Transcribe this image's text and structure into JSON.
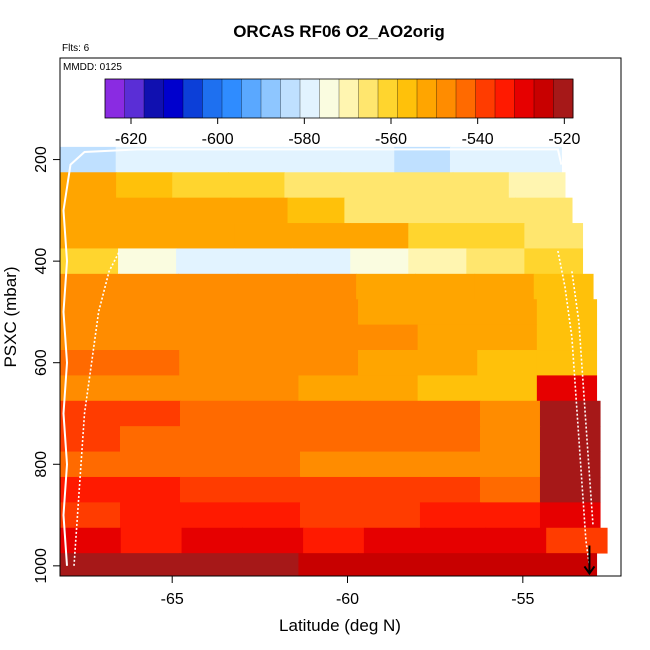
{
  "chart_data": {
    "type": "heatmap",
    "title": "ORCAS RF06 O2_AO2orig",
    "flts_note": "Flts: 6",
    "mmdd_note": "MMDD: 0125",
    "xlabel": "Latitude (deg N)",
    "ylabel": "PSXC (mbar)",
    "xlim": [
      -68.2,
      -52.2
    ],
    "ylim": [
      1020,
      0
    ],
    "xticks": [
      -65,
      -60,
      -55
    ],
    "xtick_labels": [
      "-65",
      "-60",
      "-55"
    ],
    "yticks": [
      200,
      400,
      600,
      800,
      1000
    ],
    "ytick_labels": [
      "200",
      "400",
      "600",
      "800",
      "1000"
    ],
    "colorbar": {
      "range": [
        -626,
        -518
      ],
      "ticks": [
        -620,
        -600,
        -580,
        -560,
        -540,
        -520
      ],
      "tick_labels": [
        "-620",
        "-600",
        "-580",
        "-560",
        "-540",
        "-520"
      ],
      "colors": [
        "#8a2be2",
        "#5a2ed6",
        "#1010b0",
        "#0000cd",
        "#0c3fd8",
        "#1e70f0",
        "#2f8cff",
        "#5aa8ff",
        "#8ec6ff",
        "#bfe0ff",
        "#e2f3ff",
        "#fafce0",
        "#fff5b0",
        "#ffe66e",
        "#ffd52e",
        "#ffc10a",
        "#ffa500",
        "#ff8c00",
        "#ff6a00",
        "#ff3c00",
        "#ff1a00",
        "#e60000",
        "#c80000",
        "#a61818"
      ]
    },
    "layers": [
      {
        "p_top": 175,
        "p_bot": 225,
        "lat_max": -53.9,
        "values": [
          -582,
          -580,
          -579,
          -578,
          -578,
          -580,
          -584,
          -580,
          -578
        ]
      },
      {
        "p_top": 225,
        "p_bot": 275,
        "lat_max": -53.8,
        "values": [
          -550,
          -556,
          -560,
          -562,
          -564,
          -565,
          -566,
          -567,
          -568
        ]
      },
      {
        "p_top": 275,
        "p_bot": 325,
        "lat_max": -53.6,
        "values": [
          -552,
          -552,
          -553,
          -554,
          -555,
          -566,
          -565,
          -566,
          -567
        ]
      },
      {
        "p_top": 325,
        "p_bot": 375,
        "lat_max": -53.3,
        "values": [
          -552,
          -551,
          -551,
          -551,
          -550,
          -552,
          -560,
          -563,
          -564
        ]
      },
      {
        "p_top": 375,
        "p_bot": 425,
        "lat_max": -53.3,
        "values": [
          -560,
          -575,
          -578,
          -578,
          -577,
          -573,
          -569,
          -566,
          -560
        ]
      },
      {
        "p_top": 425,
        "p_bot": 475,
        "lat_max": -53.0,
        "values": [
          -549,
          -549,
          -548,
          -548,
          -549,
          -550,
          -551,
          -553,
          -555
        ]
      },
      {
        "p_top": 475,
        "p_bot": 525,
        "lat_max": -52.9,
        "values": [
          -548,
          -547,
          -547,
          -548,
          -549,
          -550,
          -552,
          -554,
          -557
        ]
      },
      {
        "p_top": 525,
        "p_bot": 575,
        "lat_max": -52.9,
        "values": [
          -547,
          -546,
          -546,
          -547,
          -548,
          -549,
          -551,
          -553,
          -556
        ]
      },
      {
        "p_top": 575,
        "p_bot": 625,
        "lat_max": -52.9,
        "values": [
          -545,
          -545,
          -546,
          -547,
          -549,
          -552,
          -554,
          -556,
          -558
        ]
      },
      {
        "p_top": 625,
        "p_bot": 675,
        "lat_max": -52.9,
        "values": [
          -546,
          -547,
          -548,
          -549,
          -551,
          -553,
          -555,
          -557,
          -528
        ]
      },
      {
        "p_top": 675,
        "p_bot": 725,
        "lat_max": -52.8,
        "values": [
          -538,
          -540,
          -542,
          -543,
          -544,
          -545,
          -545,
          -546,
          -522
        ]
      },
      {
        "p_top": 725,
        "p_bot": 775,
        "lat_max": -52.8,
        "values": [
          -540,
          -541,
          -542,
          -542,
          -543,
          -544,
          -545,
          -546,
          -522
        ]
      },
      {
        "p_top": 775,
        "p_bot": 825,
        "lat_max": -52.8,
        "values": [
          -543,
          -544,
          -545,
          -545,
          -546,
          -546,
          -547,
          -548,
          -522
        ]
      },
      {
        "p_top": 825,
        "p_bot": 875,
        "lat_max": -52.8,
        "values": [
          -535,
          -536,
          -537,
          -538,
          -539,
          -540,
          -540,
          -541,
          -522
        ]
      },
      {
        "p_top": 875,
        "p_bot": 925,
        "lat_max": -52.8,
        "values": [
          -540,
          -536,
          -536,
          -536,
          -538,
          -537,
          -534,
          -533,
          -530
        ]
      },
      {
        "p_top": 925,
        "p_bot": 975,
        "lat_max": -52.6,
        "values": [
          -529,
          -532,
          -531,
          -531,
          -532,
          -531,
          -530,
          -530,
          -540
        ]
      },
      {
        "p_top": 975,
        "p_bot": 1020,
        "lat_max": -52.9,
        "values": [
          -520,
          -521,
          -522,
          -522,
          -523,
          -523,
          -524,
          -525,
          -526
        ]
      }
    ],
    "flight_tracks": [
      [
        [
          -68.0,
          1000
        ],
        [
          -68.1,
          900
        ],
        [
          -68.0,
          800
        ],
        [
          -68.1,
          700
        ],
        [
          -68.0,
          600
        ],
        [
          -68.1,
          500
        ],
        [
          -68.0,
          400
        ],
        [
          -68.1,
          300
        ],
        [
          -67.9,
          210
        ],
        [
          -67.5,
          185
        ],
        [
          -66.0,
          180
        ],
        [
          -57.0,
          180
        ],
        [
          -54.0,
          180
        ],
        [
          -53.9,
          210
        ]
      ],
      [
        [
          -67.8,
          1000
        ],
        [
          -67.7,
          900
        ],
        [
          -67.6,
          800
        ],
        [
          -67.5,
          700
        ],
        [
          -67.3,
          600
        ],
        [
          -67.1,
          500
        ],
        [
          -66.8,
          420
        ],
        [
          -66.5,
          380
        ]
      ],
      [
        [
          -54.0,
          380
        ],
        [
          -53.8,
          450
        ],
        [
          -53.6,
          550
        ],
        [
          -53.5,
          650
        ],
        [
          -53.4,
          750
        ],
        [
          -53.3,
          850
        ],
        [
          -53.2,
          950
        ],
        [
          -53.1,
          1000
        ]
      ],
      [
        [
          -53.6,
          420
        ],
        [
          -53.4,
          520
        ],
        [
          -53.3,
          620
        ],
        [
          -53.2,
          720
        ],
        [
          -53.1,
          820
        ],
        [
          -53.0,
          920
        ]
      ]
    ],
    "arrow": {
      "lat": -53.1,
      "p_from": 960,
      "p_to": 1015
    }
  }
}
